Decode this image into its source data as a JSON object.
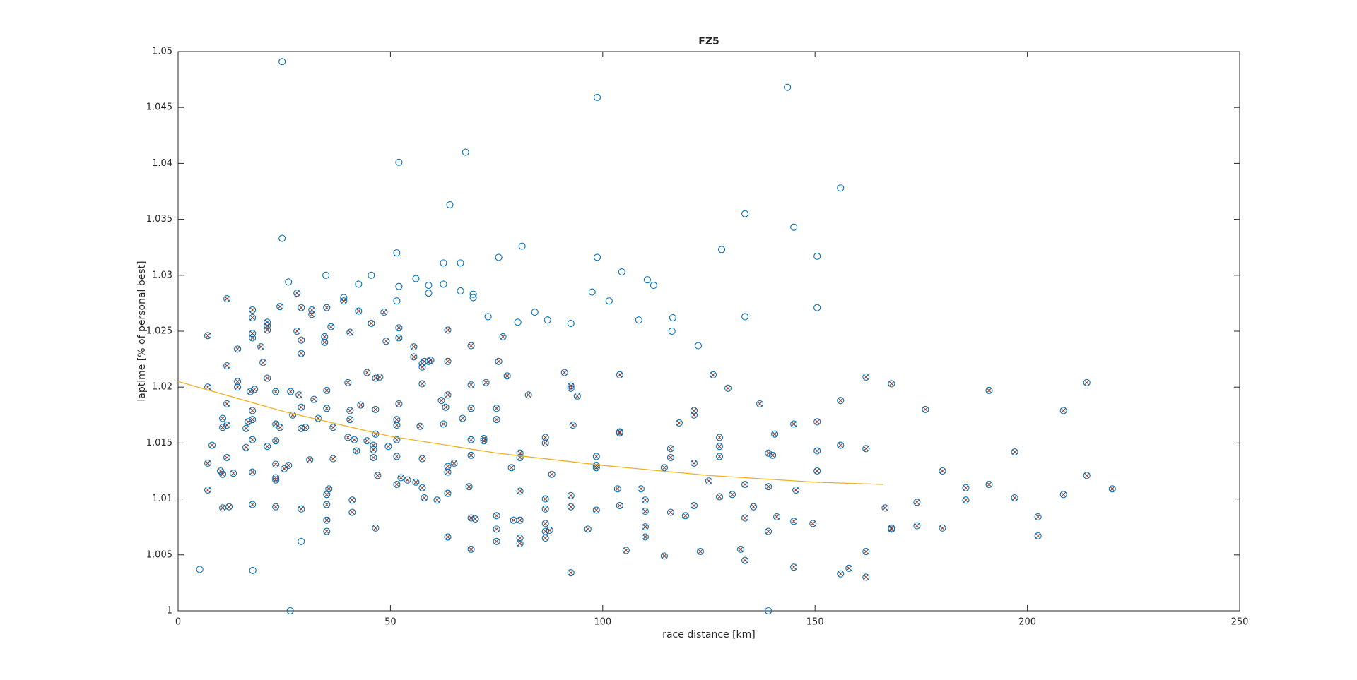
{
  "chart_data": {
    "type": "scatter",
    "title": "FZ5",
    "x_label": "race distance [km]",
    "y_label": "laptime [% of personal best]",
    "xlim": [
      0,
      250
    ],
    "ylim": [
      1,
      1.05
    ],
    "xticks": [
      0,
      50,
      100,
      150,
      200,
      250
    ],
    "yticks": [
      1,
      1.005,
      1.01,
      1.015,
      1.02,
      1.025,
      1.03,
      1.035,
      1.04,
      1.045,
      1.05
    ],
    "grid": false,
    "series": [
      {
        "color": "#0072bd",
        "marker": "o",
        "x": [
          5.1,
          17.6,
          26.4,
          24.5,
          24.5,
          26,
          34.8,
          39,
          42.5,
          45.5,
          51.5,
          52,
          51.5,
          52,
          56,
          59,
          59,
          62.5,
          62.5,
          64,
          66.5,
          66.5,
          67.7,
          69.5,
          69.5,
          73,
          75.5,
          80,
          81,
          84,
          87,
          92.5,
          97.5,
          98.7,
          98.7,
          101.5,
          104.5,
          108.5,
          110.5,
          112,
          116.5,
          116.3,
          122.5,
          128,
          133.5,
          133.5,
          139,
          143.5,
          145,
          150.5,
          150.5,
          156,
          29
        ],
        "values": [
          1.0037,
          1.0036,
          1.0,
          1.0491,
          1.0333,
          1.0294,
          1.03,
          1.028,
          1.0292,
          1.03,
          1.032,
          1.0401,
          1.0277,
          1.029,
          1.0297,
          1.0291,
          1.0284,
          1.0311,
          1.0292,
          1.0363,
          1.0311,
          1.0286,
          1.041,
          1.0283,
          1.028,
          1.0263,
          1.0316,
          1.0258,
          1.0326,
          1.0267,
          1.026,
          1.0257,
          1.0285,
          1.0459,
          1.0316,
          1.0277,
          1.0303,
          1.026,
          1.0296,
          1.0291,
          1.0262,
          1.025,
          1.0237,
          1.0323,
          1.0355,
          1.0263,
          1.0,
          1.0468,
          1.0343,
          1.0317,
          1.0271,
          1.0378,
          1.0062
        ]
      },
      {
        "color": "#0072bd",
        "cross_color": "#7a3b36",
        "marker": "ox",
        "x": [
          7,
          7,
          7,
          7,
          8,
          10,
          10.5,
          10.5,
          10.5,
          10.5,
          11.5,
          11.5,
          11.5,
          11.5,
          11.5,
          12,
          13,
          14,
          14,
          14,
          16,
          16,
          16.5,
          17,
          17.5,
          17.5,
          17.5,
          17.5,
          17.5,
          17.5,
          17.5,
          17.5,
          17.5,
          18,
          19.5,
          20,
          21,
          21,
          21,
          21,
          21,
          23,
          23,
          23,
          23,
          23,
          23,
          23,
          24,
          24,
          25,
          26,
          26.5,
          27,
          28,
          28,
          28.5,
          29,
          29,
          29,
          29,
          29,
          29,
          30,
          31,
          31.5,
          31.5,
          32,
          33,
          34.5,
          34.5,
          35,
          35,
          35,
          35,
          35,
          35,
          35.5,
          35,
          36,
          36.5,
          36.5,
          39,
          40,
          40,
          40.5,
          40.5,
          40.5,
          41,
          41,
          41.5,
          42,
          42.5,
          43,
          44.5,
          44.5,
          45.5,
          46,
          46,
          46,
          46.5,
          46.5,
          46.5,
          47,
          46.5,
          47.5,
          48.5,
          49,
          49.5,
          51.5,
          51.5,
          51.5,
          51.5,
          51.5,
          52,
          52,
          52,
          52.5,
          54,
          55.5,
          55.5,
          56,
          57,
          57.5,
          57.5,
          57.5,
          57.5,
          57.5,
          58,
          58,
          59,
          59.5,
          61,
          62,
          62.5,
          63,
          63.5,
          63.5,
          63.5,
          63.5,
          63.5,
          63.5,
          63.5,
          65,
          67,
          68.5,
          69,
          69,
          69,
          69,
          69,
          69,
          69,
          70,
          72,
          72,
          72.5,
          75,
          75,
          75,
          75,
          75,
          75.5,
          76.5,
          77.5,
          78.5,
          79,
          80.5,
          80.5,
          80.5,
          80.5,
          80.5,
          80.5,
          82.5,
          86.5,
          86.5,
          86.5,
          86.5,
          86.5,
          86.5,
          86.5,
          87.5,
          88,
          91,
          92.5,
          92.5,
          92.5,
          92.5,
          92.5,
          93,
          94,
          96.5,
          98.5,
          98.5,
          98.5,
          98.5,
          103.5,
          104,
          104,
          104,
          104,
          105.5,
          109,
          110,
          110,
          110,
          110,
          114.5,
          114.5,
          116,
          116,
          116,
          118,
          119.5,
          121.5,
          121.5,
          121.5,
          121.5,
          123,
          125,
          126,
          127.5,
          127.5,
          127.5,
          127.5,
          129.5,
          130.5,
          132.5,
          133.5,
          133.5,
          133.5,
          135.5,
          137,
          139,
          139,
          139,
          140,
          140.5,
          141,
          145,
          145,
          145,
          145.5,
          149.5,
          150.5,
          150.5,
          150.5,
          156,
          156,
          156,
          158,
          162,
          162,
          162,
          162,
          166.5,
          168,
          168,
          168,
          174,
          174,
          176,
          180,
          180,
          185.5,
          185.5,
          191,
          191,
          197,
          197,
          202.5,
          202.5,
          208.5,
          208.5,
          214,
          214,
          220
        ],
        "values": [
          1.0246,
          1.02,
          1.0132,
          1.0108,
          1.0148,
          1.0125,
          1.0172,
          1.0164,
          1.0092,
          1.0122,
          1.0279,
          1.0219,
          1.0185,
          1.0166,
          1.0137,
          1.0093,
          1.0123,
          1.0234,
          1.0205,
          1.02,
          1.0163,
          1.0146,
          1.0169,
          1.0196,
          1.0269,
          1.0262,
          1.0248,
          1.0244,
          1.0179,
          1.0171,
          1.0153,
          1.0124,
          1.0095,
          1.0198,
          1.0236,
          1.0222,
          1.0258,
          1.0255,
          1.0251,
          1.0208,
          1.0147,
          1.0196,
          1.0167,
          1.0152,
          1.0131,
          1.0119,
          1.0117,
          1.0093,
          1.0164,
          1.0272,
          1.0127,
          1.013,
          1.0196,
          1.0175,
          1.0284,
          1.025,
          1.0193,
          1.0271,
          1.0242,
          1.023,
          1.0182,
          1.0163,
          1.0091,
          1.0164,
          1.0135,
          1.0269,
          1.0265,
          1.0189,
          1.0172,
          1.0245,
          1.024,
          1.0197,
          1.0181,
          1.0104,
          1.0095,
          1.0081,
          1.0071,
          1.0109,
          1.0271,
          1.0254,
          1.0164,
          1.0136,
          1.0277,
          1.0204,
          1.0155,
          1.0249,
          1.0179,
          1.0171,
          1.0099,
          1.0088,
          1.0153,
          1.0143,
          1.0268,
          1.0184,
          1.0213,
          1.0152,
          1.0257,
          1.0148,
          1.0144,
          1.0137,
          1.018,
          1.0208,
          1.0158,
          1.0121,
          1.0074,
          1.0209,
          1.0267,
          1.0241,
          1.0147,
          1.0171,
          1.0166,
          1.0153,
          1.0138,
          1.0113,
          1.0253,
          1.0244,
          1.0185,
          1.0119,
          1.0117,
          1.0236,
          1.0227,
          1.0115,
          1.0165,
          1.0221,
          1.0218,
          1.0203,
          1.0136,
          1.011,
          1.0223,
          1.0101,
          1.0223,
          1.0224,
          1.0099,
          1.0188,
          1.0167,
          1.0182,
          1.0251,
          1.0223,
          1.0193,
          1.0129,
          1.0124,
          1.0105,
          1.0066,
          1.0132,
          1.0172,
          1.0111,
          1.0237,
          1.0202,
          1.0181,
          1.0153,
          1.0139,
          1.0083,
          1.0055,
          1.0082,
          1.0154,
          1.0152,
          1.0204,
          1.0181,
          1.0171,
          1.0085,
          1.0073,
          1.0062,
          1.0223,
          1.0245,
          1.021,
          1.0128,
          1.0081,
          1.0141,
          1.0137,
          1.0107,
          1.0081,
          1.0065,
          1.006,
          1.0193,
          1.0155,
          1.015,
          1.01,
          1.0091,
          1.0078,
          1.0071,
          1.0065,
          1.0072,
          1.0122,
          1.0213,
          1.0201,
          1.0199,
          1.0103,
          1.0093,
          1.0034,
          1.0166,
          1.0192,
          1.0073,
          1.0138,
          1.013,
          1.0128,
          1.009,
          1.0109,
          1.0211,
          1.016,
          1.0159,
          1.0094,
          1.0054,
          1.0109,
          1.0099,
          1.0089,
          1.0075,
          1.0066,
          1.0128,
          1.0049,
          1.0145,
          1.0137,
          1.0088,
          1.0168,
          1.0085,
          1.0179,
          1.0175,
          1.0132,
          1.0094,
          1.0053,
          1.0116,
          1.0211,
          1.0155,
          1.0147,
          1.0138,
          1.0102,
          1.0199,
          1.0104,
          1.0055,
          1.0113,
          1.0083,
          1.0045,
          1.0093,
          1.0185,
          1.0141,
          1.0111,
          1.0071,
          1.0139,
          1.0158,
          1.0084,
          1.0167,
          1.0039,
          1.008,
          1.0108,
          1.0078,
          1.0169,
          1.0143,
          1.0125,
          1.0188,
          1.0148,
          1.0033,
          1.0038,
          1.0209,
          1.0145,
          1.0053,
          1.003,
          1.0092,
          1.0203,
          1.0074,
          1.0073,
          1.0097,
          1.0076,
          1.018,
          1.0125,
          1.0074,
          1.011,
          1.0099,
          1.0197,
          1.0113,
          1.0142,
          1.0101,
          1.0084,
          1.0067,
          1.0179,
          1.0104,
          1.0204,
          1.0121,
          1.0109
        ]
      },
      {
        "color": "#edb120",
        "marker": "line",
        "x": [
          0,
          25,
          50,
          75,
          100,
          125,
          150,
          166
        ],
        "values": [
          1.0205,
          1.0178,
          1.0156,
          1.0141,
          1.013,
          1.0121,
          1.0115,
          1.0113
        ]
      }
    ]
  }
}
